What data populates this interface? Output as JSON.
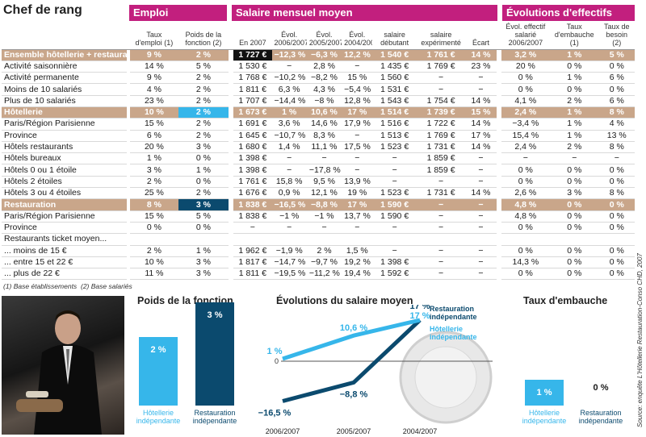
{
  "title": "Chef de rang",
  "groups": {
    "emploi": "Emploi",
    "salaire": "Salaire mensuel moyen",
    "evolutions": "Évolutions d'effectifs"
  },
  "columns": [
    "Taux d'emploi (1)",
    "Poids de la fonction (2)",
    "En 2007",
    "Évol. 2006/2007",
    "Évol. 2005/2007",
    "Évol. 2004/2007",
    "salaire débutant",
    "salaire expérimenté",
    "Écart",
    "Évol. effectif salarié 2006/2007",
    "Taux d'embauche (1)",
    "Taux de besoin (2)"
  ],
  "rows": [
    {
      "label": "Ensemble hôtellerie + restauration",
      "section": true,
      "hl": {
        "2": "dark"
      },
      "cells": [
        "9 %",
        "2 %",
        "1 727 €",
        "−12,3 %",
        "−6,3 %",
        "12,2 %",
        "1 540 €",
        "1 761 €",
        "14 %",
        "3,2 %",
        "1 %",
        "5 %"
      ]
    },
    {
      "label": "Activité saisonnière",
      "cells": [
        "14 %",
        "5 %",
        "1 530 €",
        "−",
        "2,8 %",
        "−",
        "1 435 €",
        "1 769 €",
        "23 %",
        "20 %",
        "0 %",
        "0 %"
      ]
    },
    {
      "label": "Activité permanente",
      "cells": [
        "9 %",
        "2 %",
        "1 768 €",
        "−10,2 %",
        "−8,2 %",
        "15 %",
        "1 560 €",
        "−",
        "−",
        "0 %",
        "1 %",
        "6 %"
      ]
    },
    {
      "label": "Moins de 10 salariés",
      "cells": [
        "4 %",
        "2 %",
        "1 811 €",
        "6,3 %",
        "4,3 %",
        "−5,4 %",
        "1 531 €",
        "−",
        "−",
        "0 %",
        "0 %",
        "0 %"
      ]
    },
    {
      "label": "Plus de 10 salariés",
      "cells": [
        "23 %",
        "2 %",
        "1 707 €",
        "−14,4 %",
        "−8 %",
        "12,8 %",
        "1 543 €",
        "1 754 €",
        "14 %",
        "4,1 %",
        "2 %",
        "6 %"
      ]
    },
    {
      "label": "Hôtellerie",
      "section": true,
      "hl": {
        "1": "cyan"
      },
      "cells": [
        "10 %",
        "2 %",
        "1 673 €",
        "1 %",
        "10,6 %",
        "17 %",
        "1 514 €",
        "1 739 €",
        "15 %",
        "2,4 %",
        "1 %",
        "8 %"
      ]
    },
    {
      "label": "Paris/Région Parisienne",
      "cells": [
        "15 %",
        "2 %",
        "1 691 €",
        "3,6 %",
        "14,6 %",
        "17,9 %",
        "1 516 €",
        "1 722 €",
        "14 %",
        "−3,4 %",
        "1 %",
        "4 %"
      ]
    },
    {
      "label": "Province",
      "cells": [
        "6 %",
        "2 %",
        "1 645 €",
        "−10,7 %",
        "8,3 %",
        "−",
        "1 513 €",
        "1 769 €",
        "17 %",
        "15,4 %",
        "1 %",
        "13 %"
      ]
    },
    {
      "label": "Hôtels restaurants",
      "cells": [
        "20 %",
        "3 %",
        "1 680 €",
        "1,4 %",
        "11,1 %",
        "17,5 %",
        "1 523 €",
        "1 731 €",
        "14 %",
        "2,4 %",
        "2 %",
        "8 %"
      ]
    },
    {
      "label": "Hôtels bureaux",
      "cells": [
        "1 %",
        "0 %",
        "1 398 €",
        "−",
        "−",
        "−",
        "−",
        "1 859 €",
        "−",
        "−",
        "−",
        "−"
      ]
    },
    {
      "label": "Hôtels 0 ou 1 étoile",
      "cells": [
        "3 %",
        "1 %",
        "1 398 €",
        "−",
        "−17,8 %",
        "−",
        "−",
        "1 859 €",
        "−",
        "0 %",
        "0 %",
        "0 %"
      ]
    },
    {
      "label": "Hôtels 2 étoiles",
      "cells": [
        "2 %",
        "0 %",
        "1 761 €",
        "15,8 %",
        "9,5 %",
        "13,9 %",
        "−",
        "−",
        "−",
        "0 %",
        "0 %",
        "0 %"
      ]
    },
    {
      "label": "Hôtels 3 ou 4 étoiles",
      "cells": [
        "25 %",
        "2 %",
        "1 676 €",
        "0,9 %",
        "12,1 %",
        "19 %",
        "1 523 €",
        "1 731 €",
        "14 %",
        "2,6 %",
        "3 %",
        "8 %"
      ]
    },
    {
      "label": "Restauration",
      "section": true,
      "hl": {
        "1": "navy"
      },
      "cells": [
        "8 %",
        "3 %",
        "1 838 €",
        "−16,5 %",
        "−8,8 %",
        "17 %",
        "1 590 €",
        "−",
        "−",
        "4,8 %",
        "0 %",
        "0 %"
      ]
    },
    {
      "label": "Paris/Région Parisienne",
      "cells": [
        "15 %",
        "5 %",
        "1 838 €",
        "−1 %",
        "−1 %",
        "13,7 %",
        "1 590 €",
        "−",
        "−",
        "4,8 %",
        "0 %",
        "0 %"
      ]
    },
    {
      "label": "Province",
      "cells": [
        "0 %",
        "0 %",
        "−",
        "−",
        "−",
        "−",
        "−",
        "−",
        "−",
        "0 %",
        "0 %",
        "0 %"
      ]
    },
    {
      "label": "Restaurants ticket moyen...",
      "cells": [
        "",
        "",
        "",
        "",
        "",
        "",
        "",
        "",
        "",
        "",
        "",
        ""
      ]
    },
    {
      "label": "... moins de 15 €",
      "cells": [
        "2 %",
        "1 %",
        "1 962 €",
        "−1,9 %",
        "2 %",
        "1,5 %",
        "−",
        "−",
        "−",
        "0 %",
        "0 %",
        "0 %"
      ]
    },
    {
      "label": "... entre 15 et 22 €",
      "cells": [
        "10 %",
        "3 %",
        "1 817 €",
        "−14,7 %",
        "−9,7 %",
        "19,2 %",
        "1 398 €",
        "−",
        "−",
        "14,3 %",
        "0 %",
        "0 %"
      ]
    },
    {
      "label": "... plus de 22 €",
      "cells": [
        "11 %",
        "3 %",
        "1 811 €",
        "−19,5 %",
        "−11,2 %",
        "19,4 %",
        "1 592 €",
        "−",
        "−",
        "0 %",
        "0 %",
        "0 %"
      ]
    }
  ],
  "footnotes": [
    "(1) Base établissements",
    "(2) Base salariés"
  ],
  "source": "Source: enquête L'Hôtellerie Restauration-Conso CHD, 2007",
  "panel_poids": {
    "title": "Poids de la fonction",
    "bars": [
      {
        "label": "Hôtellerie indépendante",
        "value_label": "2 %",
        "value": 2,
        "color": "#36b6ea"
      },
      {
        "label": "Restauration indépendante",
        "value_label": "3 %",
        "value": 3,
        "color": "#0b4a6e"
      }
    ]
  },
  "chart_data": [
    {
      "type": "line",
      "title": "Évolutions du salaire moyen",
      "categories": [
        "2006/2007",
        "2005/2007",
        "2004/2007"
      ],
      "zero_label": "0",
      "series": [
        {
          "name": "Restauration indépendante",
          "values": [
            -16.5,
            -8.8,
            17
          ],
          "labels": [
            "−16,5 %",
            "−8,8 %",
            "17 %"
          ],
          "color": "#0b4a6e"
        },
        {
          "name": "Hôtellerie indépendante",
          "values": [
            1,
            10.6,
            17
          ],
          "labels": [
            "1 %",
            "10,6 %",
            "17 %"
          ],
          "color": "#36b6ea"
        }
      ]
    }
  ],
  "panel_embauche": {
    "title": "Taux d'embauche",
    "bars": [
      {
        "label": "Hôtellerie indépendante",
        "value_label": "1 %",
        "value": 1,
        "color": "#36b6ea"
      },
      {
        "label": "Restauration indépendante",
        "value_label": "0 %",
        "value": 0,
        "color": "#0b4a6e"
      }
    ]
  }
}
